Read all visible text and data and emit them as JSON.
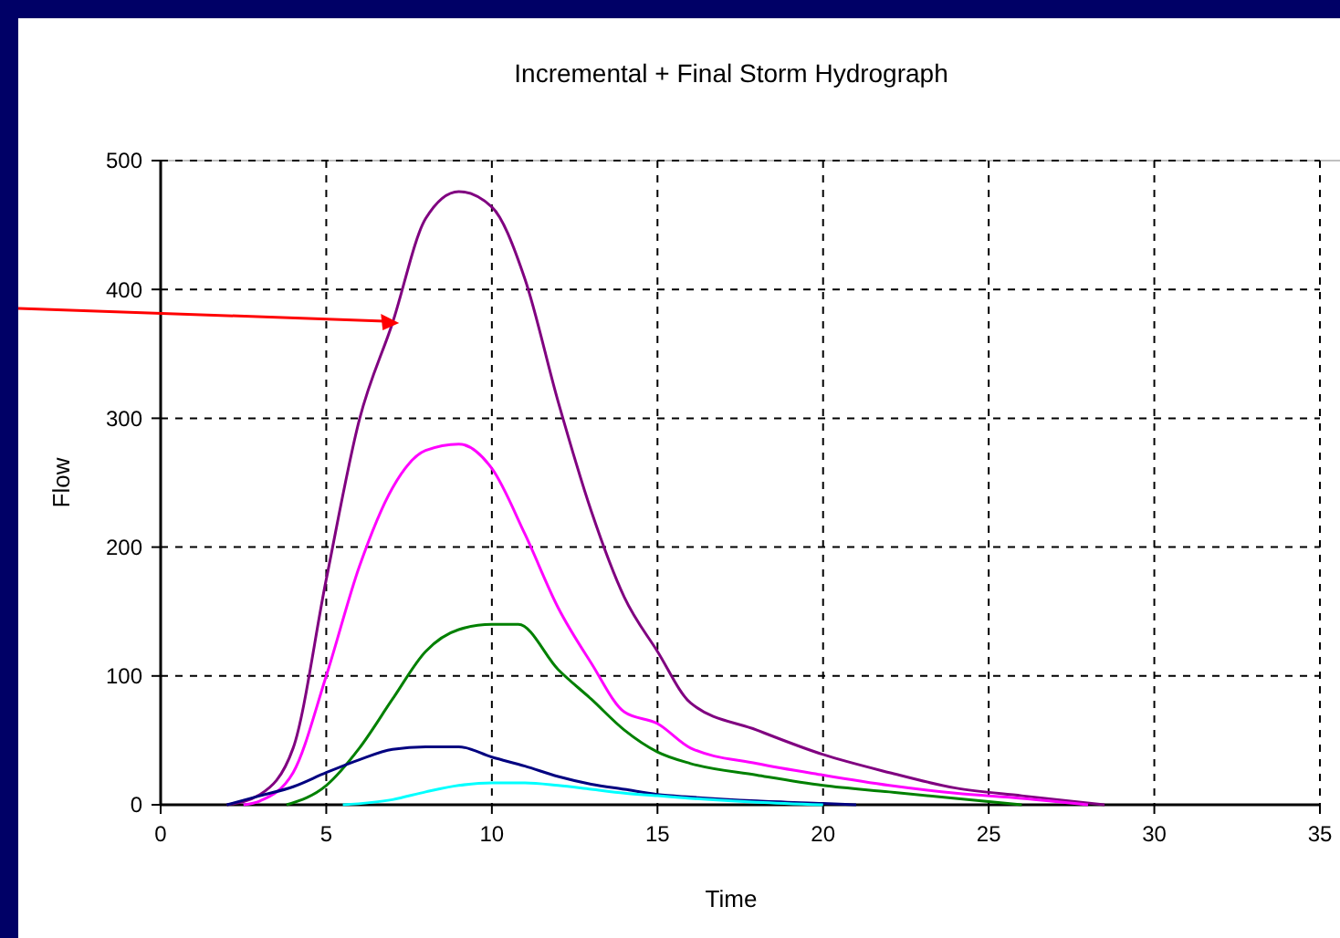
{
  "chart_data": {
    "type": "line",
    "title": "Incremental + Final Storm Hydrograph",
    "xlabel": "Time",
    "ylabel": "Flow",
    "xlim": [
      0,
      35
    ],
    "xticks": [
      0,
      5,
      10,
      15,
      20,
      25,
      30,
      35
    ],
    "ylim": [
      0,
      500
    ],
    "yticks": [
      0,
      100,
      200,
      300,
      400,
      500
    ],
    "grid": true,
    "marker": "none",
    "line_style": "solid",
    "series": [
      {
        "color": "#800080",
        "x": [
          2,
          3,
          4,
          5,
          6,
          7,
          8,
          9,
          10,
          11,
          12,
          13,
          14,
          15,
          16,
          18,
          20,
          22,
          24,
          26,
          28.5
        ],
        "values": [
          0,
          8,
          44,
          175,
          299,
          374,
          455,
          476,
          464,
          408,
          313,
          228,
          161,
          119,
          79,
          58,
          39,
          25,
          13,
          7,
          0
        ]
      },
      {
        "color": "#ff00ff",
        "x": [
          2.5,
          3,
          4,
          5,
          6,
          7,
          8,
          9,
          10,
          11,
          12,
          13,
          14,
          15,
          16,
          18,
          20,
          22,
          24,
          26,
          28
        ],
        "values": [
          0,
          3,
          25,
          100,
          185,
          246,
          275,
          280,
          261,
          210,
          153,
          110,
          72,
          63,
          44,
          32,
          23,
          15,
          9,
          5,
          0
        ]
      },
      {
        "color": "#008000",
        "x": [
          3.8,
          5,
          6,
          7,
          8,
          9,
          10,
          10.8,
          12,
          13,
          14,
          15,
          16,
          18,
          20,
          22,
          24,
          26
        ],
        "values": [
          0,
          15,
          44,
          82,
          119,
          136,
          140,
          140,
          105,
          82,
          58,
          41,
          32,
          23,
          15,
          10,
          5,
          0
        ]
      },
      {
        "color": "#000080",
        "x": [
          2,
          3,
          4,
          5,
          6,
          7,
          8,
          9,
          10,
          11,
          12,
          13,
          14,
          15,
          16,
          18,
          20,
          21
        ],
        "values": [
          0,
          7,
          14,
          25,
          35,
          43,
          45,
          45,
          37,
          30,
          22,
          16,
          12,
          8,
          6,
          3,
          1,
          0
        ]
      },
      {
        "color": "#00ffff",
        "x": [
          5.5,
          7,
          8,
          9,
          10,
          11,
          12,
          13,
          14,
          15,
          16,
          18,
          20
        ],
        "values": [
          0,
          4,
          10,
          15,
          17,
          17,
          15,
          12,
          9,
          7,
          5,
          2,
          0
        ]
      }
    ]
  }
}
